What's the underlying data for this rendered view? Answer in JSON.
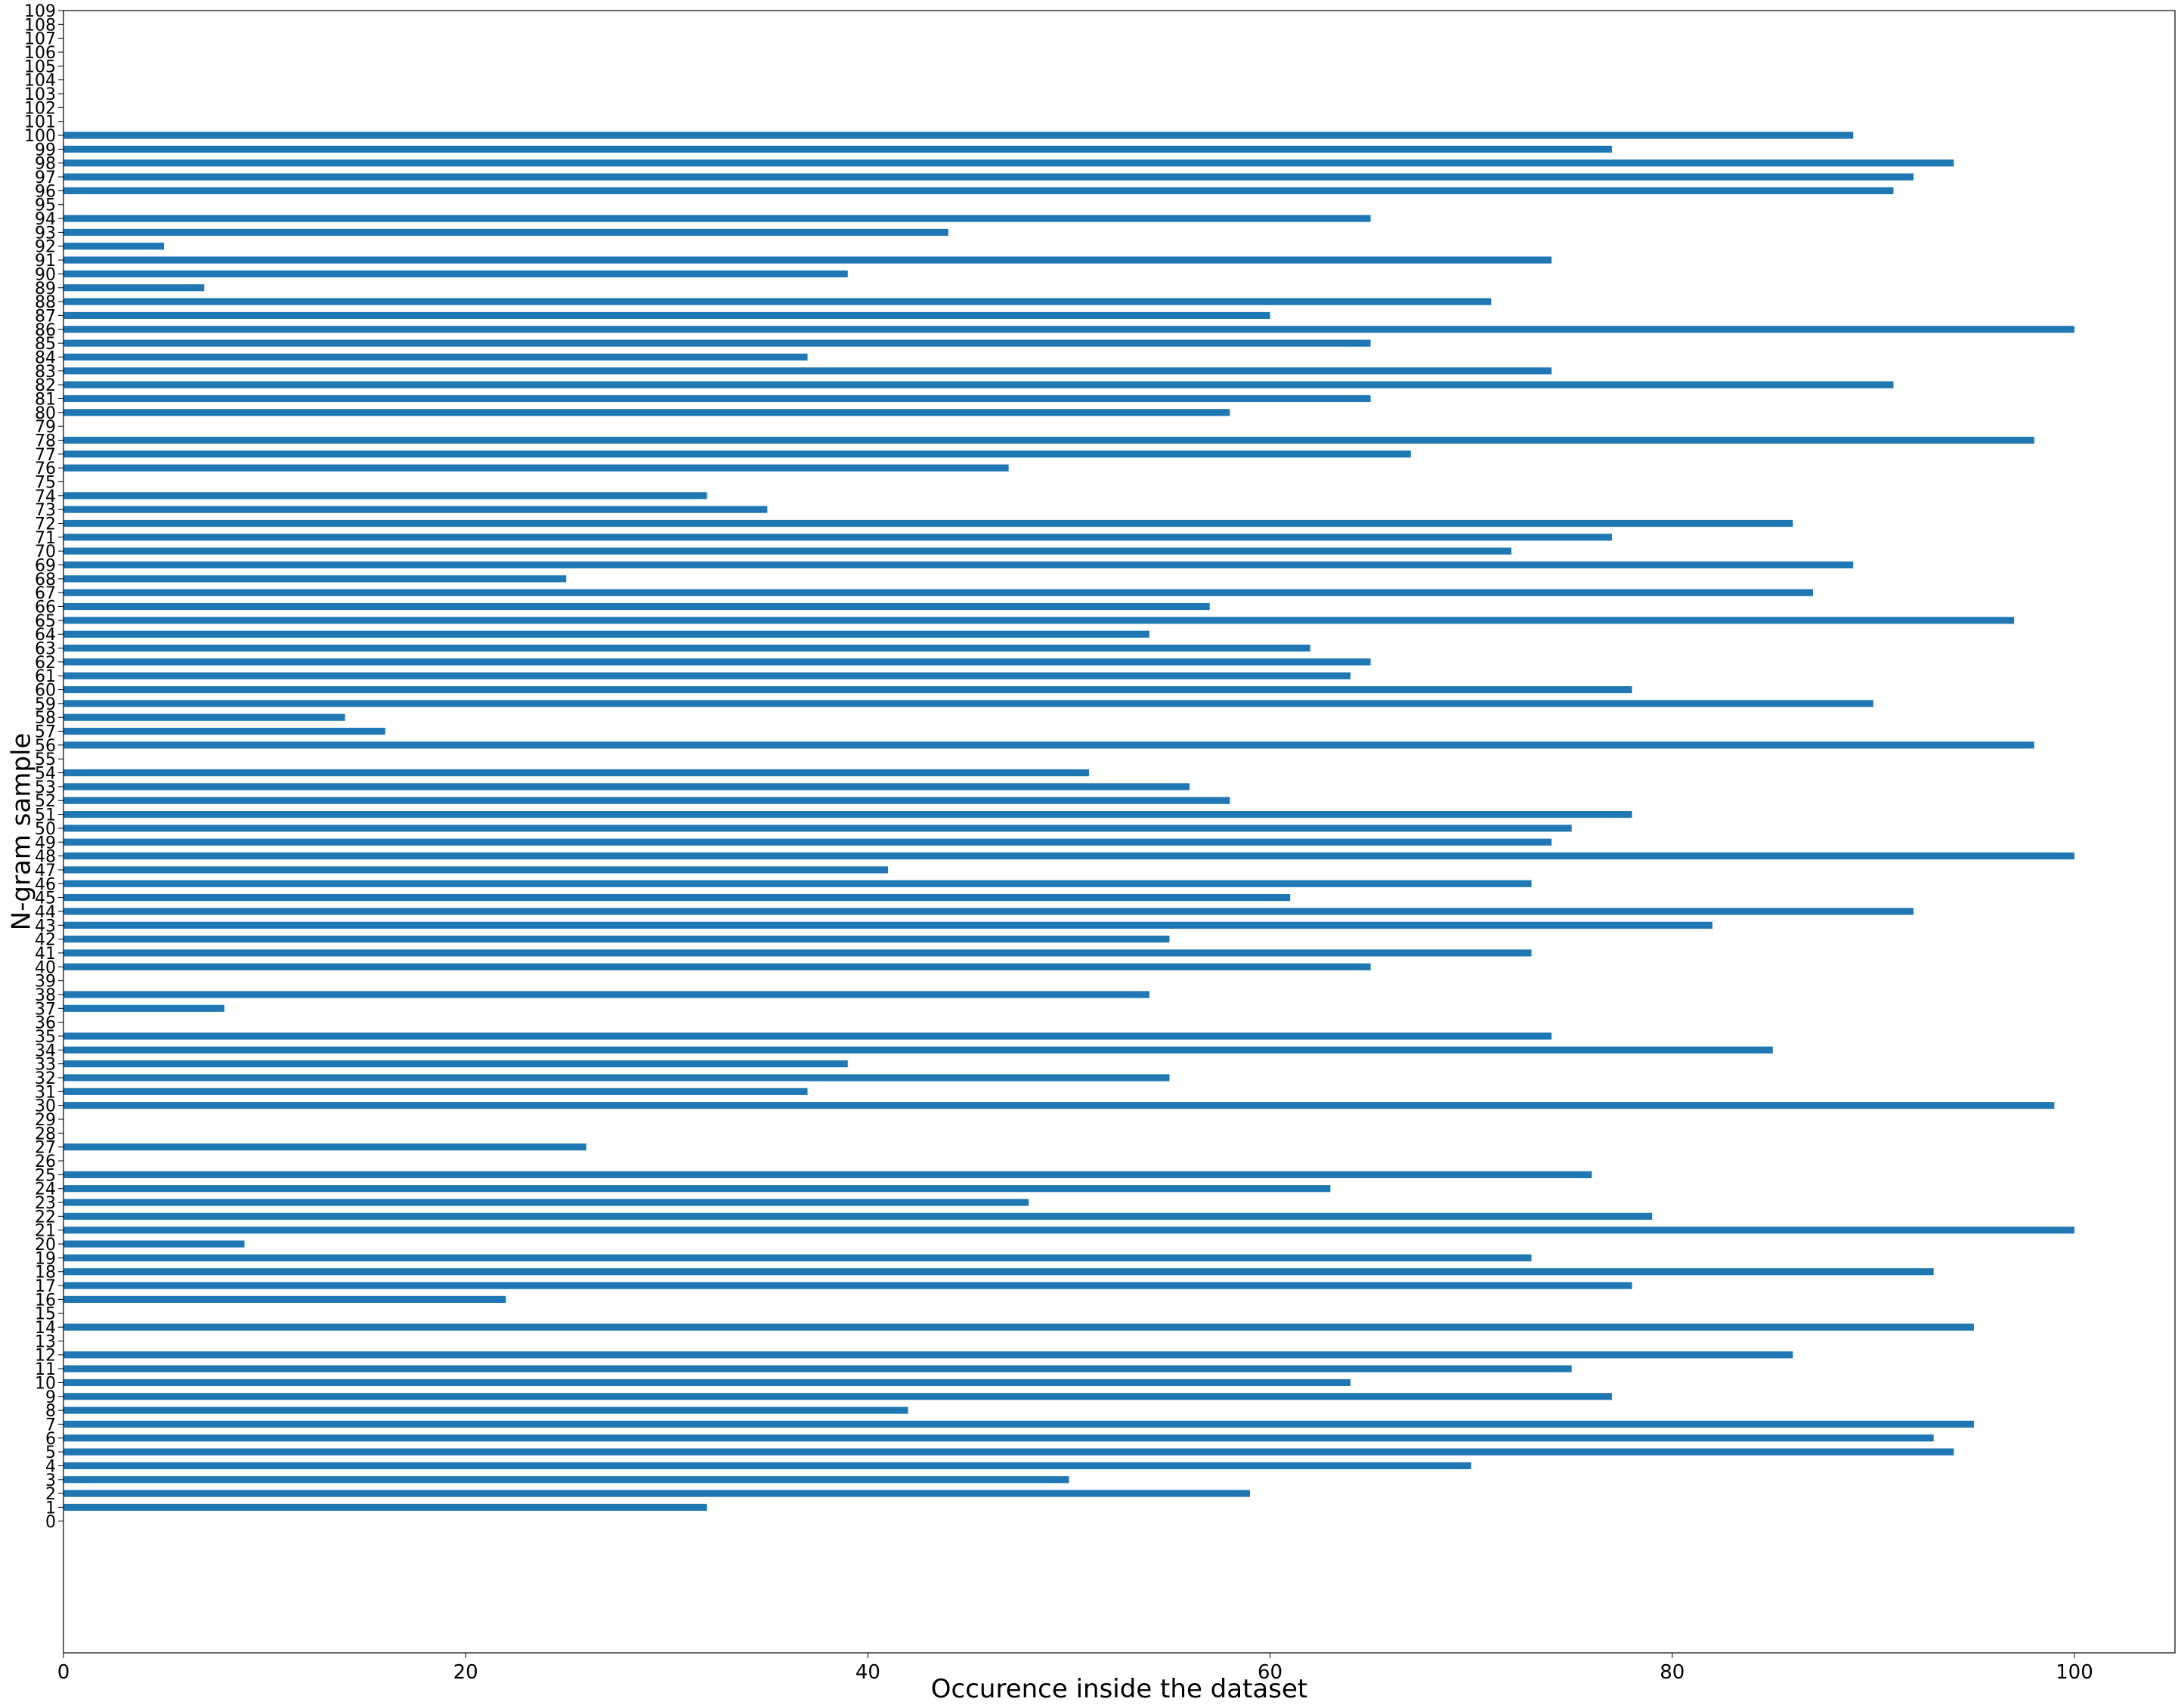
{
  "chart_data": {
    "type": "bar",
    "orientation": "horizontal",
    "title": "",
    "xlabel": "Occurence inside the dataset",
    "ylabel": "N-gram sample",
    "xlim": [
      0,
      105
    ],
    "ylim": [
      -9.5,
      109
    ],
    "xticks": [
      0,
      20,
      40,
      60,
      80,
      100
    ],
    "yticks": [
      0,
      1,
      2,
      3,
      4,
      5,
      6,
      7,
      8,
      9,
      10,
      11,
      12,
      13,
      14,
      15,
      16,
      17,
      18,
      19,
      20,
      21,
      22,
      23,
      24,
      25,
      26,
      27,
      28,
      29,
      30,
      31,
      32,
      33,
      34,
      35,
      36,
      37,
      38,
      39,
      40,
      41,
      42,
      43,
      44,
      45,
      46,
      47,
      48,
      49,
      50,
      51,
      52,
      53,
      54,
      55,
      56,
      57,
      58,
      59,
      60,
      61,
      62,
      63,
      64,
      65,
      66,
      67,
      68,
      69,
      70,
      71,
      72,
      73,
      74,
      75,
      76,
      77,
      78,
      79,
      80,
      81,
      82,
      83,
      84,
      85,
      86,
      87,
      88,
      89,
      90,
      91,
      92,
      93,
      94,
      95,
      96,
      97,
      98,
      99,
      100,
      101,
      102,
      103,
      104,
      105,
      106,
      107,
      108,
      109
    ],
    "grid": false,
    "bar_color": "#1f77b4",
    "bars": [
      {
        "y": 1,
        "value": 32
      },
      {
        "y": 2,
        "value": 59
      },
      {
        "y": 3,
        "value": 50
      },
      {
        "y": 4,
        "value": 70
      },
      {
        "y": 5,
        "value": 94
      },
      {
        "y": 6,
        "value": 93
      },
      {
        "y": 7,
        "value": 95
      },
      {
        "y": 8,
        "value": 42
      },
      {
        "y": 9,
        "value": 77
      },
      {
        "y": 10,
        "value": 64
      },
      {
        "y": 11,
        "value": 75
      },
      {
        "y": 12,
        "value": 86
      },
      {
        "y": 14,
        "value": 95
      },
      {
        "y": 16,
        "value": 22
      },
      {
        "y": 17,
        "value": 78
      },
      {
        "y": 18,
        "value": 93
      },
      {
        "y": 19,
        "value": 73
      },
      {
        "y": 20,
        "value": 9
      },
      {
        "y": 21,
        "value": 100
      },
      {
        "y": 22,
        "value": 79
      },
      {
        "y": 23,
        "value": 48
      },
      {
        "y": 24,
        "value": 63
      },
      {
        "y": 25,
        "value": 76
      },
      {
        "y": 27,
        "value": 26
      },
      {
        "y": 30,
        "value": 99
      },
      {
        "y": 31,
        "value": 37
      },
      {
        "y": 32,
        "value": 55
      },
      {
        "y": 33,
        "value": 39
      },
      {
        "y": 34,
        "value": 85
      },
      {
        "y": 35,
        "value": 74
      },
      {
        "y": 37,
        "value": 8
      },
      {
        "y": 38,
        "value": 54
      },
      {
        "y": 40,
        "value": 65
      },
      {
        "y": 41,
        "value": 73
      },
      {
        "y": 42,
        "value": 55
      },
      {
        "y": 43,
        "value": 82
      },
      {
        "y": 44,
        "value": 92
      },
      {
        "y": 45,
        "value": 61
      },
      {
        "y": 46,
        "value": 73
      },
      {
        "y": 47,
        "value": 41
      },
      {
        "y": 48,
        "value": 100
      },
      {
        "y": 49,
        "value": 74
      },
      {
        "y": 50,
        "value": 75
      },
      {
        "y": 51,
        "value": 78
      },
      {
        "y": 52,
        "value": 58
      },
      {
        "y": 53,
        "value": 56
      },
      {
        "y": 54,
        "value": 51
      },
      {
        "y": 56,
        "value": 98
      },
      {
        "y": 57,
        "value": 16
      },
      {
        "y": 58,
        "value": 14
      },
      {
        "y": 59,
        "value": 90
      },
      {
        "y": 60,
        "value": 78
      },
      {
        "y": 61,
        "value": 64
      },
      {
        "y": 62,
        "value": 65
      },
      {
        "y": 63,
        "value": 62
      },
      {
        "y": 64,
        "value": 54
      },
      {
        "y": 65,
        "value": 97
      },
      {
        "y": 66,
        "value": 57
      },
      {
        "y": 67,
        "value": 87
      },
      {
        "y": 68,
        "value": 25
      },
      {
        "y": 69,
        "value": 89
      },
      {
        "y": 70,
        "value": 72
      },
      {
        "y": 71,
        "value": 77
      },
      {
        "y": 72,
        "value": 86
      },
      {
        "y": 73,
        "value": 35
      },
      {
        "y": 74,
        "value": 32
      },
      {
        "y": 76,
        "value": 47
      },
      {
        "y": 77,
        "value": 67
      },
      {
        "y": 78,
        "value": 98
      },
      {
        "y": 80,
        "value": 58
      },
      {
        "y": 81,
        "value": 65
      },
      {
        "y": 82,
        "value": 91
      },
      {
        "y": 83,
        "value": 74
      },
      {
        "y": 84,
        "value": 37
      },
      {
        "y": 85,
        "value": 65
      },
      {
        "y": 86,
        "value": 100
      },
      {
        "y": 87,
        "value": 60
      },
      {
        "y": 88,
        "value": 71
      },
      {
        "y": 89,
        "value": 7
      },
      {
        "y": 90,
        "value": 39
      },
      {
        "y": 91,
        "value": 74
      },
      {
        "y": 92,
        "value": 5
      },
      {
        "y": 93,
        "value": 44
      },
      {
        "y": 94,
        "value": 65
      },
      {
        "y": 96,
        "value": 91
      },
      {
        "y": 97,
        "value": 92
      },
      {
        "y": 98,
        "value": 94
      },
      {
        "y": 99,
        "value": 77
      },
      {
        "y": 100,
        "value": 89
      }
    ]
  }
}
